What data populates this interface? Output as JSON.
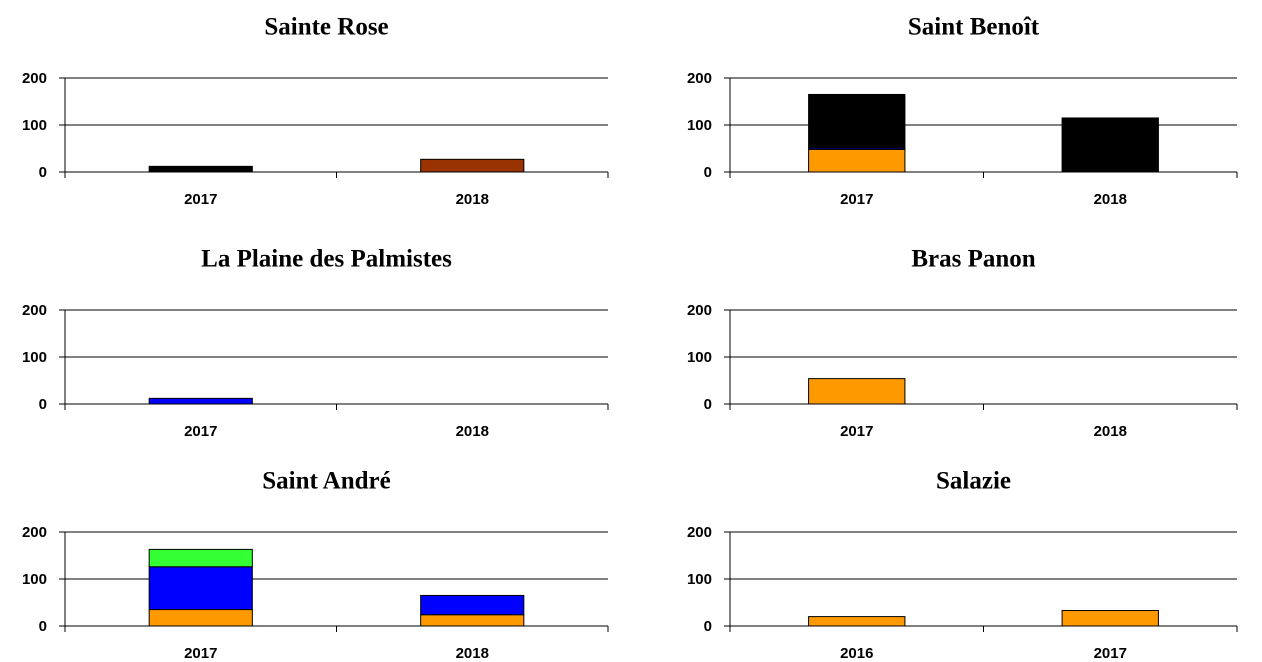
{
  "chart_data": [
    {
      "type": "bar",
      "stacked": true,
      "title": "Sainte Rose",
      "categories": [
        "2017",
        "2018"
      ],
      "series": [
        {
          "color": "#000000",
          "values": [
            12,
            null
          ]
        },
        {
          "color": "#993300",
          "values": [
            null,
            27
          ]
        }
      ],
      "ylim": [
        0,
        200
      ],
      "yticks": [
        0,
        100,
        200
      ],
      "grid": true
    },
    {
      "type": "bar",
      "stacked": true,
      "title": "Saint Benoît",
      "categories": [
        "2017",
        "2018"
      ],
      "series": [
        {
          "color": "#ff9900",
          "values": [
            48,
            null
          ]
        },
        {
          "color": "#0000ff",
          "values": [
            3,
            null
          ]
        },
        {
          "color": "#000000",
          "values": [
            114,
            115
          ]
        }
      ],
      "ylim": [
        0,
        200
      ],
      "yticks": [
        0,
        100,
        200
      ],
      "grid": true
    },
    {
      "type": "bar",
      "stacked": true,
      "title": "La Plaine des Palmistes",
      "categories": [
        "2017",
        "2018"
      ],
      "series": [
        {
          "color": "#0000ff",
          "values": [
            12,
            null
          ]
        }
      ],
      "ylim": [
        0,
        200
      ],
      "yticks": [
        0,
        100,
        200
      ],
      "grid": true
    },
    {
      "type": "bar",
      "stacked": true,
      "title": "Bras Panon",
      "categories": [
        "2017",
        "2018"
      ],
      "series": [
        {
          "color": "#ff9900",
          "values": [
            54,
            null
          ]
        }
      ],
      "ylim": [
        0,
        200
      ],
      "yticks": [
        0,
        100,
        200
      ],
      "grid": true
    },
    {
      "type": "bar",
      "stacked": true,
      "title": "Saint André",
      "categories": [
        "2017",
        "2018"
      ],
      "series": [
        {
          "color": "#ff9900",
          "values": [
            35,
            24
          ]
        },
        {
          "color": "#0000ff",
          "values": [
            91,
            41
          ]
        },
        {
          "color": "#33ff33",
          "values": [
            37,
            null
          ]
        }
      ],
      "ylim": [
        0,
        200
      ],
      "yticks": [
        0,
        100,
        200
      ],
      "grid": true
    },
    {
      "type": "bar",
      "stacked": true,
      "title": "Salazie",
      "categories": [
        "2016",
        "2017"
      ],
      "series": [
        {
          "color": "#ff9900",
          "values": [
            20,
            33
          ]
        }
      ],
      "ylim": [
        0,
        200
      ],
      "yticks": [
        0,
        100,
        200
      ],
      "grid": true
    }
  ]
}
